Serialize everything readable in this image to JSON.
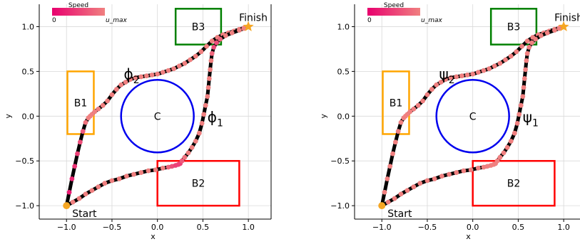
{
  "chart_data": [
    {
      "type": "scatter",
      "xlabel": "x",
      "ylabel": "y",
      "xlim": [
        -1.3,
        1.25
      ],
      "ylim": [
        -1.15,
        1.25
      ],
      "xticks": [
        -1.0,
        -0.5,
        0.0,
        0.5,
        1.0
      ],
      "xtick_labels": [
        "−1.0",
        "−0.5",
        "0.0",
        "0.5",
        "1.0"
      ],
      "yticks": [
        -1.0,
        -0.5,
        0.0,
        0.5,
        1.0
      ],
      "ytick_labels": [
        "−1.0",
        "−0.5",
        "0.0",
        "0.5",
        "1.0"
      ],
      "grid": true,
      "colorbar": {
        "title": "Speed",
        "min_label": "0",
        "max_label": "u_max",
        "placement": "top-left",
        "colors": [
          "#e8006e",
          "#f08080"
        ]
      },
      "start": {
        "label": "Start",
        "x": -1.0,
        "y": -1.0,
        "color": "#f5a623"
      },
      "finish": {
        "label": "Finish",
        "x": 1.0,
        "y": 1.0,
        "color": "#f5a623"
      },
      "regions": [
        {
          "label": "B1",
          "type": "rect",
          "x0": -0.99,
          "x1": -0.7,
          "y0": -0.2,
          "y1": 0.5,
          "color": "#ffa500"
        },
        {
          "label": "B2",
          "type": "rect",
          "x0": 0.0,
          "x1": 0.9,
          "y0": -1.0,
          "y1": -0.5,
          "color": "#ff0000"
        },
        {
          "label": "B3",
          "type": "rect",
          "x0": 0.2,
          "x1": 0.7,
          "y0": 0.8,
          "y1": 1.2,
          "color": "#008000"
        },
        {
          "label": "C",
          "type": "circle",
          "cx": 0.0,
          "cy": 0.0,
          "r": 0.4,
          "color": "#0000ee"
        }
      ],
      "series": [
        {
          "name": "ϕ₂",
          "name_label": {
            "base": "ϕ",
            "sub": "2",
            "x": -0.37,
            "y": 0.48
          },
          "x": [
            -1.0,
            -0.97,
            -0.94,
            -0.91,
            -0.88,
            -0.85,
            -0.82,
            -0.79,
            -0.76,
            -0.74,
            -0.72,
            -0.69,
            -0.65,
            -0.6,
            -0.55,
            -0.5,
            -0.45,
            -0.4,
            -0.35,
            -0.3,
            -0.24,
            -0.18,
            -0.12,
            -0.06,
            0.0,
            0.06,
            0.12,
            0.18,
            0.24,
            0.3,
            0.36,
            0.42,
            0.48,
            0.54,
            0.6,
            0.66,
            0.72,
            0.78,
            0.84,
            0.9,
            0.95,
            1.0
          ],
          "y": [
            -1.0,
            -0.85,
            -0.7,
            -0.56,
            -0.42,
            -0.29,
            -0.17,
            -0.07,
            -0.02,
            0.0,
            0.02,
            0.05,
            0.08,
            0.12,
            0.17,
            0.24,
            0.3,
            0.35,
            0.38,
            0.41,
            0.43,
            0.44,
            0.45,
            0.46,
            0.47,
            0.49,
            0.51,
            0.53,
            0.56,
            0.59,
            0.63,
            0.67,
            0.72,
            0.78,
            0.84,
            0.88,
            0.91,
            0.93,
            0.95,
            0.97,
            0.985,
            1.0
          ],
          "speed": [
            0.2,
            0.2,
            0.3,
            0.4,
            0.5,
            0.6,
            0.7,
            0.9,
            1.0,
            1.0,
            1.0,
            1.0,
            1.0,
            1.0,
            1.0,
            1.0,
            1.0,
            1.0,
            1.0,
            1.0,
            1.0,
            1.0,
            1.0,
            1.0,
            1.0,
            1.0,
            1.0,
            1.0,
            1.0,
            1.0,
            1.0,
            1.0,
            1.0,
            1.0,
            1.0,
            1.0,
            1.0,
            1.0,
            1.0,
            1.0,
            1.0,
            1.0
          ]
        },
        {
          "name": "ϕ₁",
          "name_label": {
            "base": "ϕ",
            "sub": "1",
            "x": 0.55,
            "y": 0.0
          },
          "x": [
            -1.0,
            -0.93,
            -0.86,
            -0.79,
            -0.72,
            -0.65,
            -0.58,
            -0.5,
            -0.42,
            -0.34,
            -0.26,
            -0.18,
            -0.1,
            -0.02,
            0.06,
            0.12,
            0.16,
            0.2,
            0.23,
            0.25,
            0.27,
            0.3,
            0.34,
            0.38,
            0.42,
            0.46,
            0.49,
            0.51,
            0.53,
            0.55,
            0.56,
            0.57,
            0.58,
            0.59,
            0.6,
            0.62,
            0.65,
            0.69,
            0.75,
            0.82,
            0.9,
            0.95,
            1.0
          ],
          "y": [
            -1.0,
            -0.96,
            -0.92,
            -0.87,
            -0.83,
            -0.79,
            -0.75,
            -0.72,
            -0.7,
            -0.67,
            -0.65,
            -0.63,
            -0.61,
            -0.6,
            -0.58,
            -0.57,
            -0.56,
            -0.55,
            -0.54,
            -0.53,
            -0.5,
            -0.46,
            -0.41,
            -0.35,
            -0.28,
            -0.19,
            -0.08,
            0.02,
            0.12,
            0.22,
            0.32,
            0.42,
            0.52,
            0.62,
            0.7,
            0.77,
            0.82,
            0.86,
            0.9,
            0.93,
            0.96,
            0.98,
            1.0
          ],
          "speed": [
            1.0,
            1.0,
            1.0,
            1.0,
            1.0,
            1.0,
            1.0,
            1.0,
            1.0,
            1.0,
            1.0,
            1.0,
            1.0,
            1.0,
            1.0,
            0.8,
            0.6,
            0.5,
            0.5,
            0.5,
            0.7,
            0.9,
            1.0,
            1.0,
            1.0,
            1.0,
            1.0,
            1.0,
            1.0,
            1.0,
            1.0,
            1.0,
            1.0,
            1.0,
            0.8,
            0.6,
            0.6,
            0.8,
            1.0,
            1.0,
            1.0,
            1.0,
            1.0
          ]
        }
      ]
    },
    {
      "type": "scatter",
      "xlabel": "x",
      "ylabel": "y",
      "xlim": [
        -1.3,
        1.25
      ],
      "ylim": [
        -1.15,
        1.25
      ],
      "xticks": [
        -1.0,
        -0.5,
        0.0,
        0.5,
        1.0
      ],
      "xtick_labels": [
        "−1.0",
        "−0.5",
        "0.0",
        "0.5",
        "1.0"
      ],
      "yticks": [
        -1.0,
        -0.5,
        0.0,
        0.5,
        1.0
      ],
      "ytick_labels": [
        "−1.0",
        "−0.5",
        "0.0",
        "0.5",
        "1.0"
      ],
      "grid": true,
      "colorbar": {
        "title": "Speed",
        "min_label": "0",
        "max_label": "u_max",
        "placement": "top-left",
        "colors": [
          "#e8006e",
          "#f08080"
        ]
      },
      "start": {
        "label": "Start",
        "x": -1.0,
        "y": -1.0,
        "color": "#f5a623"
      },
      "finish": {
        "label": "Finish",
        "x": 1.0,
        "y": 1.0,
        "color": "#f5a623"
      },
      "regions": [
        {
          "label": "B1",
          "type": "rect",
          "x0": -0.99,
          "x1": -0.7,
          "y0": -0.2,
          "y1": 0.5,
          "color": "#ffa500"
        },
        {
          "label": "B2",
          "type": "rect",
          "x0": 0.0,
          "x1": 0.9,
          "y0": -1.0,
          "y1": -0.5,
          "color": "#ff0000"
        },
        {
          "label": "B3",
          "type": "rect",
          "x0": 0.2,
          "x1": 0.7,
          "y0": 0.8,
          "y1": 1.2,
          "color": "#008000"
        },
        {
          "label": "C",
          "type": "circle",
          "cx": 0.0,
          "cy": 0.0,
          "r": 0.4,
          "color": "#0000ee"
        }
      ],
      "series": [
        {
          "name": "ψ₂",
          "name_label": {
            "base": "ψ",
            "sub": "2",
            "x": -0.37,
            "y": 0.48
          },
          "x": [
            -1.0,
            -0.97,
            -0.94,
            -0.91,
            -0.88,
            -0.85,
            -0.82,
            -0.79,
            -0.76,
            -0.74,
            -0.72,
            -0.69,
            -0.65,
            -0.6,
            -0.55,
            -0.5,
            -0.45,
            -0.4,
            -0.35,
            -0.3,
            -0.24,
            -0.18,
            -0.12,
            -0.06,
            0.0,
            0.06,
            0.12,
            0.18,
            0.24,
            0.3,
            0.36,
            0.42,
            0.48,
            0.54,
            0.6,
            0.66,
            0.72,
            0.78,
            0.84,
            0.9,
            0.95,
            1.0
          ],
          "y": [
            -1.0,
            -0.85,
            -0.7,
            -0.56,
            -0.42,
            -0.29,
            -0.17,
            -0.07,
            -0.02,
            0.0,
            0.02,
            0.05,
            0.08,
            0.12,
            0.17,
            0.24,
            0.3,
            0.35,
            0.38,
            0.41,
            0.43,
            0.44,
            0.45,
            0.46,
            0.47,
            0.49,
            0.51,
            0.53,
            0.56,
            0.59,
            0.63,
            0.67,
            0.72,
            0.78,
            0.84,
            0.88,
            0.91,
            0.93,
            0.95,
            0.97,
            0.985,
            1.0
          ],
          "speed": [
            1.0,
            1.0,
            1.0,
            1.0,
            1.0,
            1.0,
            1.0,
            1.0,
            1.0,
            1.0,
            1.0,
            1.0,
            1.0,
            1.0,
            1.0,
            1.0,
            1.0,
            1.0,
            1.0,
            1.0,
            1.0,
            1.0,
            1.0,
            1.0,
            1.0,
            1.0,
            1.0,
            1.0,
            1.0,
            1.0,
            1.0,
            1.0,
            1.0,
            1.0,
            1.0,
            1.0,
            1.0,
            1.0,
            1.0,
            1.0,
            1.0,
            1.0
          ]
        },
        {
          "name": "ψ₁",
          "name_label": {
            "base": "ψ",
            "sub": "1",
            "x": 0.55,
            "y": 0.0
          },
          "x": [
            -1.0,
            -0.93,
            -0.86,
            -0.79,
            -0.72,
            -0.65,
            -0.58,
            -0.5,
            -0.42,
            -0.34,
            -0.26,
            -0.18,
            -0.1,
            -0.02,
            0.06,
            0.12,
            0.16,
            0.2,
            0.23,
            0.25,
            0.27,
            0.3,
            0.34,
            0.38,
            0.42,
            0.46,
            0.49,
            0.51,
            0.53,
            0.55,
            0.56,
            0.57,
            0.58,
            0.59,
            0.6,
            0.62,
            0.65,
            0.69,
            0.75,
            0.82,
            0.9,
            0.95,
            1.0
          ],
          "y": [
            -1.0,
            -0.96,
            -0.92,
            -0.87,
            -0.83,
            -0.79,
            -0.75,
            -0.72,
            -0.7,
            -0.67,
            -0.65,
            -0.63,
            -0.61,
            -0.6,
            -0.58,
            -0.57,
            -0.56,
            -0.55,
            -0.54,
            -0.53,
            -0.5,
            -0.46,
            -0.41,
            -0.35,
            -0.28,
            -0.19,
            -0.08,
            0.02,
            0.12,
            0.22,
            0.32,
            0.42,
            0.52,
            0.62,
            0.7,
            0.77,
            0.82,
            0.86,
            0.9,
            0.93,
            0.96,
            0.98,
            1.0
          ],
          "speed": [
            1.0,
            1.0,
            1.0,
            1.0,
            1.0,
            1.0,
            1.0,
            1.0,
            1.0,
            1.0,
            1.0,
            1.0,
            1.0,
            1.0,
            1.0,
            1.0,
            1.0,
            1.0,
            1.0,
            1.0,
            1.0,
            1.0,
            1.0,
            1.0,
            1.0,
            1.0,
            1.0,
            1.0,
            1.0,
            1.0,
            1.0,
            1.0,
            1.0,
            1.0,
            1.0,
            1.0,
            1.0,
            1.0,
            1.0,
            1.0,
            1.0,
            1.0,
            1.0
          ]
        }
      ]
    }
  ]
}
